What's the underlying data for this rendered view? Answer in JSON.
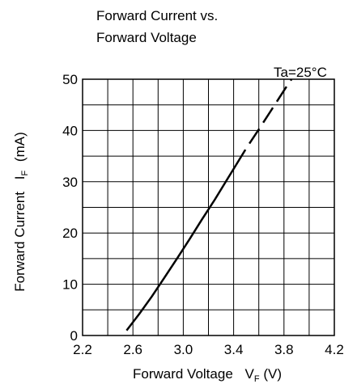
{
  "chart_data": {
    "type": "line",
    "title_line1": "Forward Current vs.",
    "title_line2": "Forward Voltage",
    "annotation": "Ta=25°C",
    "xlabel_main": "Forward Voltage",
    "xlabel_symbol": "V",
    "xlabel_sub": "F",
    "xlabel_unit": "(V)",
    "ylabel_main": "Forward Current",
    "ylabel_symbol": "I",
    "ylabel_sub": "F",
    "ylabel_unit": "(mA)",
    "xlim": [
      2.2,
      4.2
    ],
    "ylim": [
      0,
      50
    ],
    "x_major_ticks": [
      2.2,
      2.6,
      3.0,
      3.4,
      3.8,
      4.2
    ],
    "x_tick_labels": [
      "2.2",
      "2.6",
      "3.0",
      "3.4",
      "3.8",
      "4.2"
    ],
    "y_major_ticks": [
      0,
      10,
      20,
      30,
      40,
      50
    ],
    "y_tick_labels": [
      "0",
      "10",
      "20",
      "30",
      "40",
      "50"
    ],
    "x_grid_step": 0.2,
    "y_grid_step": 5,
    "grid": true,
    "series": [
      {
        "style": "solid",
        "x": [
          2.55,
          2.65,
          2.75,
          2.85,
          2.95,
          3.05,
          3.15,
          3.25,
          3.35,
          3.42
        ],
        "y": [
          1.0,
          4.2,
          7.6,
          11.3,
          15.0,
          18.8,
          22.7,
          26.5,
          30.5,
          33.3
        ]
      },
      {
        "style": "dashed",
        "x": [
          3.42,
          3.5,
          3.6,
          3.7,
          3.8,
          3.86
        ],
        "y": [
          33.3,
          36.5,
          40.2,
          44.0,
          47.8,
          50.0
        ]
      }
    ]
  }
}
